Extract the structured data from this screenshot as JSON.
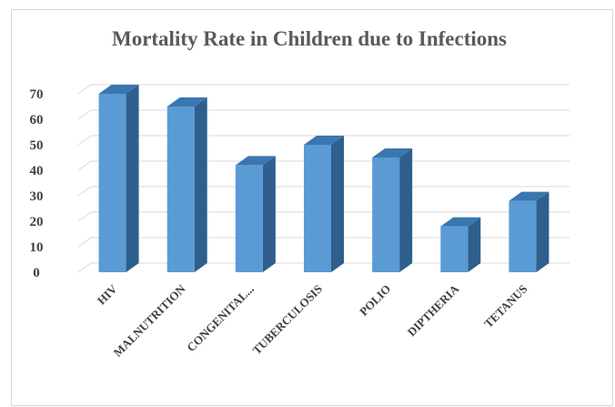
{
  "chart_data": {
    "type": "bar",
    "title": "Mortality Rate in  Children due to Infections",
    "categories": [
      "HIV",
      "MALNUTRITION",
      "CONGENITAL...",
      "TUBERCULOSIS",
      "POLIO",
      "DIPTHERIA",
      "TETANUS"
    ],
    "values": [
      70,
      65,
      42,
      50,
      45,
      18,
      28
    ],
    "ylim": [
      0,
      70
    ],
    "yticks": [
      0,
      10,
      20,
      30,
      40,
      50,
      60,
      70
    ],
    "grid": true,
    "legend": "none",
    "style": "3d-column",
    "colors": {
      "bar_front": "#5b9bd5",
      "bar_side": "#2e5f8d",
      "bar_top": "#3a77b0",
      "grid": "#d9d9d9"
    }
  }
}
